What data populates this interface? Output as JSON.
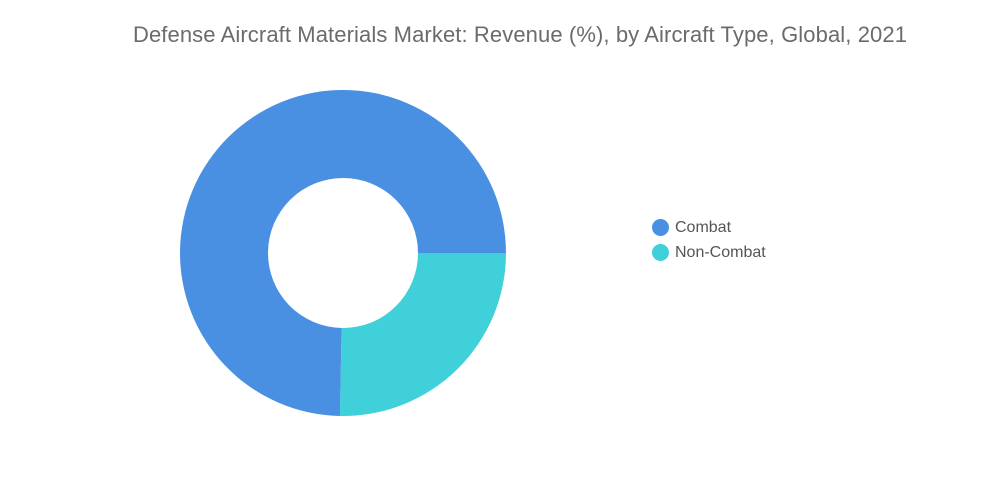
{
  "chart_data": {
    "type": "pie",
    "title": "Defense Aircraft Materials Market: Revenue (%), by Aircraft Type, Global, 2021",
    "categories": [
      "Combat",
      "Non-Combat"
    ],
    "values": [
      74.7,
      25.3
    ],
    "colors": [
      "#4a90e2",
      "#40d0da"
    ],
    "legend_position": "right",
    "style": "donut"
  },
  "legend": {
    "items": [
      {
        "label": "Combat",
        "color": "#4a90e2"
      },
      {
        "label": "Non-Combat",
        "color": "#40d0da"
      }
    ]
  }
}
